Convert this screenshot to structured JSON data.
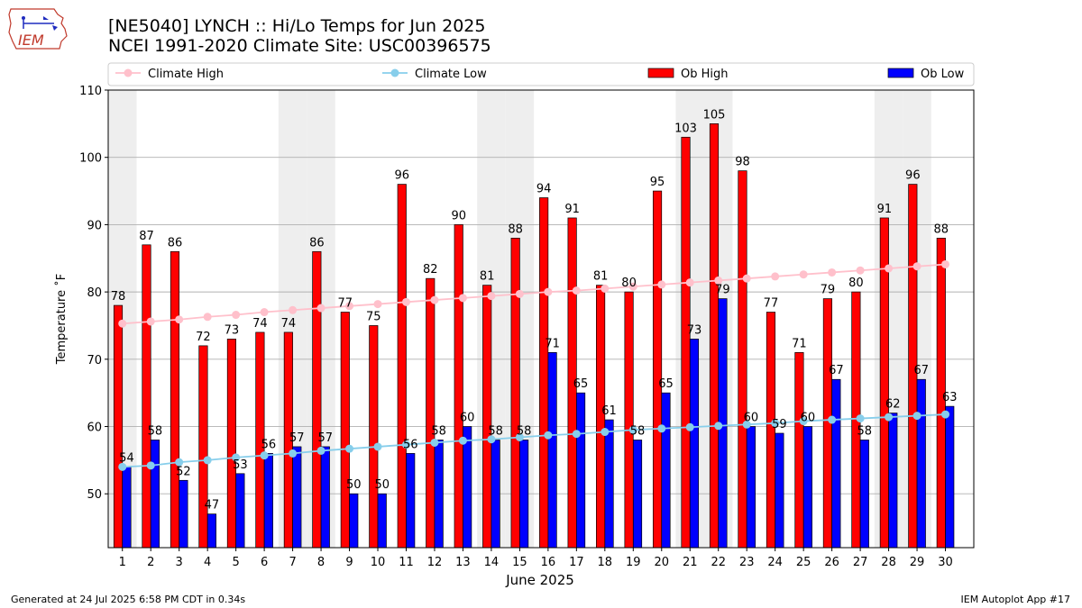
{
  "header": {
    "logo_text": "IEM",
    "title_line1": "[NE5040] LYNCH :: Hi/Lo Temps for Jun 2025",
    "title_line2": "NCEI 1991-2020 Climate Site: USC00396575"
  },
  "footer": {
    "left": "Generated at 24 Jul 2025 6:58 PM CDT in 0.34s",
    "right": "IEM Autoplot App #17"
  },
  "colors": {
    "ob_high": "#ff0000",
    "ob_low": "#0000ff",
    "climate_high": "#ffc0cb",
    "climate_low": "#87ceeb",
    "weekend_shade": "#eeeeee",
    "grid": "#b0b0b0"
  },
  "chart_data": {
    "type": "bar",
    "xlabel": "June 2025",
    "ylabel": "Temperature ˚F",
    "ylim": [
      42,
      110
    ],
    "yticks": [
      50,
      60,
      70,
      80,
      90,
      100,
      110
    ],
    "grid": "horizontal",
    "legend_position": "top",
    "categories": [
      "1",
      "2",
      "3",
      "4",
      "5",
      "6",
      "7",
      "8",
      "9",
      "10",
      "11",
      "12",
      "13",
      "14",
      "15",
      "16",
      "17",
      "18",
      "19",
      "20",
      "21",
      "22",
      "23",
      "24",
      "25",
      "26",
      "27",
      "28",
      "29",
      "30"
    ],
    "shaded_days": [
      1,
      7,
      8,
      14,
      15,
      21,
      22,
      28,
      29
    ],
    "series": [
      {
        "name": "Climate High",
        "kind": "line",
        "values": [
          75.3,
          75.6,
          75.9,
          76.3,
          76.6,
          77.0,
          77.3,
          77.6,
          77.9,
          78.2,
          78.5,
          78.8,
          79.1,
          79.4,
          79.7,
          80.0,
          80.2,
          80.5,
          80.8,
          81.1,
          81.4,
          81.7,
          82.0,
          82.3,
          82.6,
          82.9,
          83.2,
          83.5,
          83.8,
          84.1
        ]
      },
      {
        "name": "Climate Low",
        "kind": "line",
        "values": [
          54.0,
          54.2,
          54.7,
          55.0,
          55.4,
          55.7,
          56.0,
          56.4,
          56.7,
          57.0,
          57.3,
          57.6,
          57.9,
          58.1,
          58.4,
          58.7,
          58.9,
          59.2,
          59.5,
          59.7,
          59.9,
          60.1,
          60.3,
          60.5,
          60.8,
          61.0,
          61.2,
          61.4,
          61.6,
          61.8
        ]
      },
      {
        "name": "Ob High",
        "kind": "bar",
        "values": [
          78,
          87,
          86,
          72,
          73,
          74,
          74,
          86,
          77,
          75,
          96,
          82,
          90,
          81,
          88,
          94,
          91,
          81,
          80,
          95,
          103,
          105,
          98,
          77,
          71,
          79,
          80,
          91,
          96,
          88
        ]
      },
      {
        "name": "Ob Low",
        "kind": "bar",
        "values": [
          54,
          58,
          52,
          47,
          53,
          56,
          57,
          57,
          50,
          50,
          56,
          58,
          60,
          58,
          58,
          71,
          65,
          61,
          58,
          65,
          73,
          79,
          60,
          59,
          60,
          67,
          58,
          62,
          67,
          63
        ]
      }
    ]
  }
}
